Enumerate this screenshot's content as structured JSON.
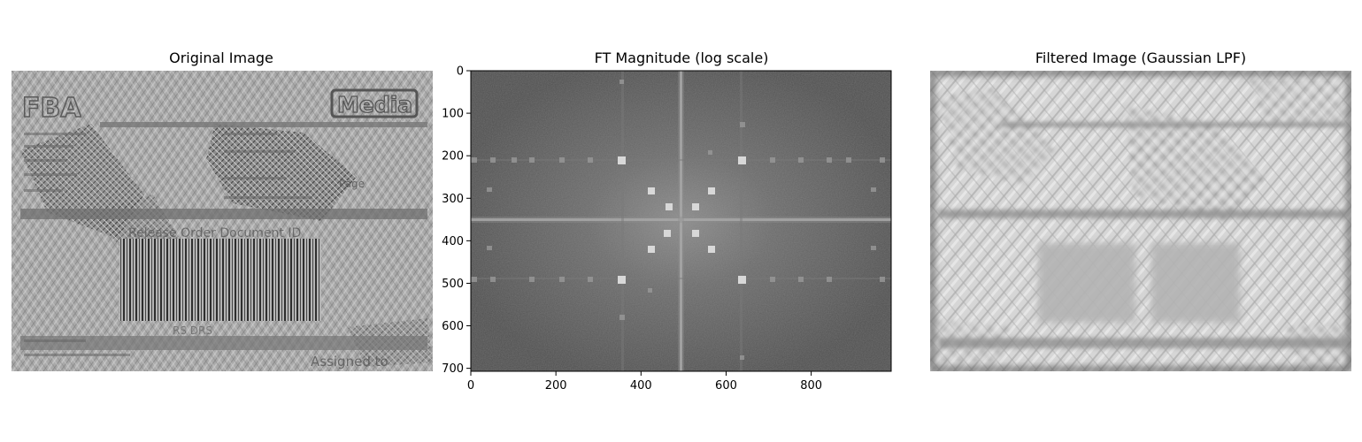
{
  "panels": [
    {
      "title": "Original Image"
    },
    {
      "title": "FT Magnitude (log scale)"
    },
    {
      "title": "Filtered Image (Gaussian LPF)"
    }
  ],
  "original_image": {
    "text_fragments": [
      {
        "text": "FBA"
      },
      {
        "text": "Media"
      },
      {
        "text": "Release Order Document ID"
      },
      {
        "text": "RS DRS"
      },
      {
        "text": "Page"
      },
      {
        "text": "Assigned to"
      }
    ]
  },
  "ft_axes": {
    "x_ticks": [
      "0",
      "200",
      "400",
      "600",
      "800"
    ],
    "y_ticks": [
      "0",
      "100",
      "200",
      "300",
      "400",
      "500",
      "600",
      "700"
    ]
  }
}
